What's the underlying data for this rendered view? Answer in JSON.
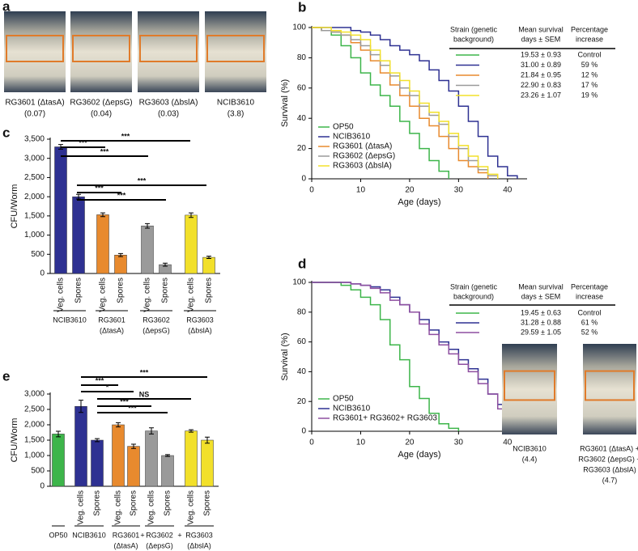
{
  "figure_a": {
    "label": "a",
    "photos": [
      {
        "name": "RG3601 (ΔtasA)",
        "value": "(0.07)"
      },
      {
        "name": "RG3602 (ΔepsG)",
        "value": "(0.04)"
      },
      {
        "name": "RG3603 (ΔbslA)",
        "value": "(0.03)"
      },
      {
        "name": "NCIB3610",
        "value": "(3.8)"
      }
    ]
  },
  "chart_data": [
    {
      "type": "line",
      "label": "b",
      "step": true,
      "xlabel": "Age (days)",
      "ylabel": "Survival (%)",
      "x": [
        0,
        2,
        4,
        6,
        8,
        10,
        12,
        14,
        16,
        18,
        20,
        22,
        24,
        26,
        28,
        30,
        32,
        34,
        36,
        38,
        40,
        42,
        44
      ],
      "xlim": [
        0,
        44
      ],
      "xticks": [
        0,
        10,
        20,
        30,
        40
      ],
      "ylim": [
        0,
        100
      ],
      "yticks": [
        0,
        20,
        40,
        60,
        80,
        100
      ],
      "legend": "lower left",
      "series": [
        {
          "name": "OP50",
          "color": "#3db54a",
          "values": [
            100,
            98,
            95,
            88,
            80,
            70,
            62,
            55,
            48,
            38,
            30,
            20,
            12,
            5,
            0,
            null,
            null,
            null,
            null,
            null,
            null,
            null,
            null
          ]
        },
        {
          "name": "NCIB3610",
          "color": "#2e3192",
          "values": [
            100,
            100,
            100,
            100,
            98,
            97,
            95,
            92,
            88,
            85,
            82,
            78,
            72,
            65,
            58,
            48,
            38,
            28,
            15,
            8,
            2,
            0,
            null
          ]
        },
        {
          "name": "RG3601 (ΔtasA)",
          "color": "#e88a2e",
          "values": [
            100,
            98,
            97,
            95,
            90,
            85,
            78,
            70,
            62,
            55,
            48,
            40,
            35,
            28,
            20,
            12,
            8,
            4,
            0,
            null,
            null,
            null,
            null
          ]
        },
        {
          "name": "RG3602 (ΔepsG)",
          "color": "#9a9a9a",
          "values": [
            100,
            98,
            97,
            95,
            92,
            88,
            82,
            75,
            68,
            60,
            55,
            48,
            42,
            36,
            28,
            20,
            12,
            6,
            2,
            0,
            null,
            null,
            null
          ]
        },
        {
          "name": "RG3603 (ΔbslA)",
          "color": "#f2e02a",
          "values": [
            100,
            100,
            98,
            97,
            95,
            92,
            85,
            78,
            70,
            65,
            58,
            50,
            44,
            38,
            30,
            22,
            15,
            8,
            3,
            0,
            null,
            null,
            null
          ]
        }
      ],
      "table": {
        "header": [
          [
            "Strain (genetic",
            "background)"
          ],
          [
            "Mean survival",
            "days ± SEM"
          ],
          [
            "Percentage",
            "increase"
          ]
        ],
        "rows": [
          [
            "19.53 ± 0.93",
            "Control"
          ],
          [
            "31.00 ± 0.89",
            "59 %"
          ],
          [
            "21.84 ± 0.95",
            "12 %"
          ],
          [
            "22.90 ± 0.83",
            "17 %"
          ],
          [
            "23.26 ± 1.07",
            "19 %"
          ]
        ]
      }
    },
    {
      "type": "bar",
      "label": "c",
      "ylabel": "CFU/Worm",
      "categories": [
        "Veg. cells",
        "Spores",
        "Veg. cells",
        "Spores",
        "Veg. cells",
        "Spores",
        "Veg. cells",
        "Spores"
      ],
      "values": [
        3300,
        2000,
        1530,
        480,
        1240,
        230,
        1520,
        420
      ],
      "errors": [
        60,
        60,
        50,
        40,
        60,
        40,
        60,
        30
      ],
      "colors": [
        "#2e3192",
        "#2e3192",
        "#e88a2e",
        "#e88a2e",
        "#9a9a9a",
        "#9a9a9a",
        "#f2e02a",
        "#f2e02a"
      ],
      "ylim": [
        0,
        3500
      ],
      "yticks": [
        0,
        500,
        {
          "value": 1000,
          "label": "1,000"
        },
        {
          "value": 1500,
          "label": "1,500"
        },
        {
          "value": 2000,
          "label": "2,000"
        },
        {
          "value": 2500,
          "label": "2,500"
        },
        {
          "value": 3000,
          "label": "3,000"
        },
        {
          "value": 3500,
          "label": "3,500"
        }
      ],
      "groups": [
        {
          "name": "NCIB3610"
        },
        {
          "name": "RG3601",
          "detail": "(ΔtasA)"
        },
        {
          "name": "RG3602",
          "detail": "(ΔepsG)"
        },
        {
          "name": "RG3603",
          "detail": "(ΔbslA)"
        }
      ],
      "annotations": [
        "***",
        "***",
        "***",
        "***",
        "***",
        "***"
      ]
    },
    {
      "type": "line",
      "label": "d",
      "step": true,
      "xlabel": "Age (days)",
      "ylabel": "Survival (%)",
      "x": [
        0,
        2,
        4,
        6,
        8,
        10,
        12,
        14,
        16,
        18,
        20,
        22,
        24,
        26,
        28,
        30,
        32,
        34,
        36,
        38,
        40,
        42,
        44
      ],
      "xlim": [
        0,
        44
      ],
      "xticks": [
        0,
        10,
        20,
        30,
        40
      ],
      "ylim": [
        0,
        100
      ],
      "yticks": [
        0,
        20,
        40,
        60,
        80,
        100
      ],
      "legend": "lower left",
      "series": [
        {
          "name": "OP50",
          "color": "#3db54a",
          "values": [
            100,
            100,
            100,
            98,
            95,
            90,
            85,
            75,
            58,
            48,
            30,
            22,
            12,
            5,
            2,
            0,
            null,
            null,
            null,
            null,
            null,
            null,
            null
          ]
        },
        {
          "name": "NCIB3610",
          "color": "#2e3192",
          "values": [
            100,
            100,
            100,
            100,
            99,
            98,
            97,
            95,
            90,
            85,
            80,
            75,
            68,
            60,
            55,
            48,
            42,
            35,
            25,
            18,
            10,
            0,
            null
          ]
        },
        {
          "name": "RG3601+ RG3602+ RG3603",
          "color": "#8e4fa0",
          "values": [
            100,
            100,
            100,
            100,
            99,
            98,
            96,
            93,
            88,
            85,
            80,
            72,
            65,
            58,
            52,
            45,
            40,
            32,
            25,
            15,
            8,
            0,
            null
          ]
        }
      ],
      "table": {
        "header": [
          [
            "Strain (genetic",
            "background)"
          ],
          [
            "Mean survival",
            "days ± SEM"
          ],
          [
            "Percentage",
            "increase"
          ]
        ],
        "rows": [
          [
            "19.45 ± 0.63",
            "Control"
          ],
          [
            "31.28 ± 0.88",
            "61 %"
          ],
          [
            "29.59 ± 1.05",
            "52 %"
          ]
        ]
      },
      "photos": [
        {
          "lines": [
            "NCIB3610",
            "(4.4)"
          ]
        },
        {
          "lines": [
            "RG3601 (ΔtasA) +",
            "RG3602 (ΔepsG) +",
            "RG3603 (ΔbslA)",
            "(4.7)"
          ]
        }
      ]
    },
    {
      "type": "bar",
      "label": "e",
      "ylabel": "CFU/Worm",
      "categories": [
        null,
        "Veg. cells",
        "Spores",
        "Veg. cells",
        "Spores",
        "Veg. cells",
        "Spores",
        "Veg. cells",
        "Spores"
      ],
      "values": [
        1700,
        2600,
        1500,
        2000,
        1300,
        1800,
        1000,
        1800,
        1500
      ],
      "errors": [
        90,
        200,
        50,
        70,
        70,
        100,
        30,
        40,
        100
      ],
      "colors": [
        "#3db54a",
        "#2e3192",
        "#2e3192",
        "#e88a2e",
        "#e88a2e",
        "#9a9a9a",
        "#9a9a9a",
        "#f2e02a",
        "#f2e02a"
      ],
      "ylim": [
        0,
        3000
      ],
      "yticks": [
        0,
        500,
        {
          "value": 1000,
          "label": "1,000"
        },
        {
          "value": 1500,
          "label": "1,500"
        },
        {
          "value": 2000,
          "label": "2,000"
        },
        {
          "value": 2500,
          "label": "2,500"
        },
        {
          "value": 3000,
          "label": "3,000"
        }
      ],
      "groups": [
        {
          "name": "OP50"
        },
        {
          "name": "NCIB3610"
        },
        {
          "name": "RG3601",
          "detail": "(ΔtasA)"
        },
        {
          "name": "RG3602",
          "detail": "(ΔepsG)"
        },
        {
          "name": "RG3603",
          "detail": "(ΔbslA)"
        }
      ],
      "separators": [
        "+",
        "+"
      ],
      "annotations": [
        "***",
        "***",
        "*",
        "NS",
        "***",
        "***"
      ]
    }
  ]
}
